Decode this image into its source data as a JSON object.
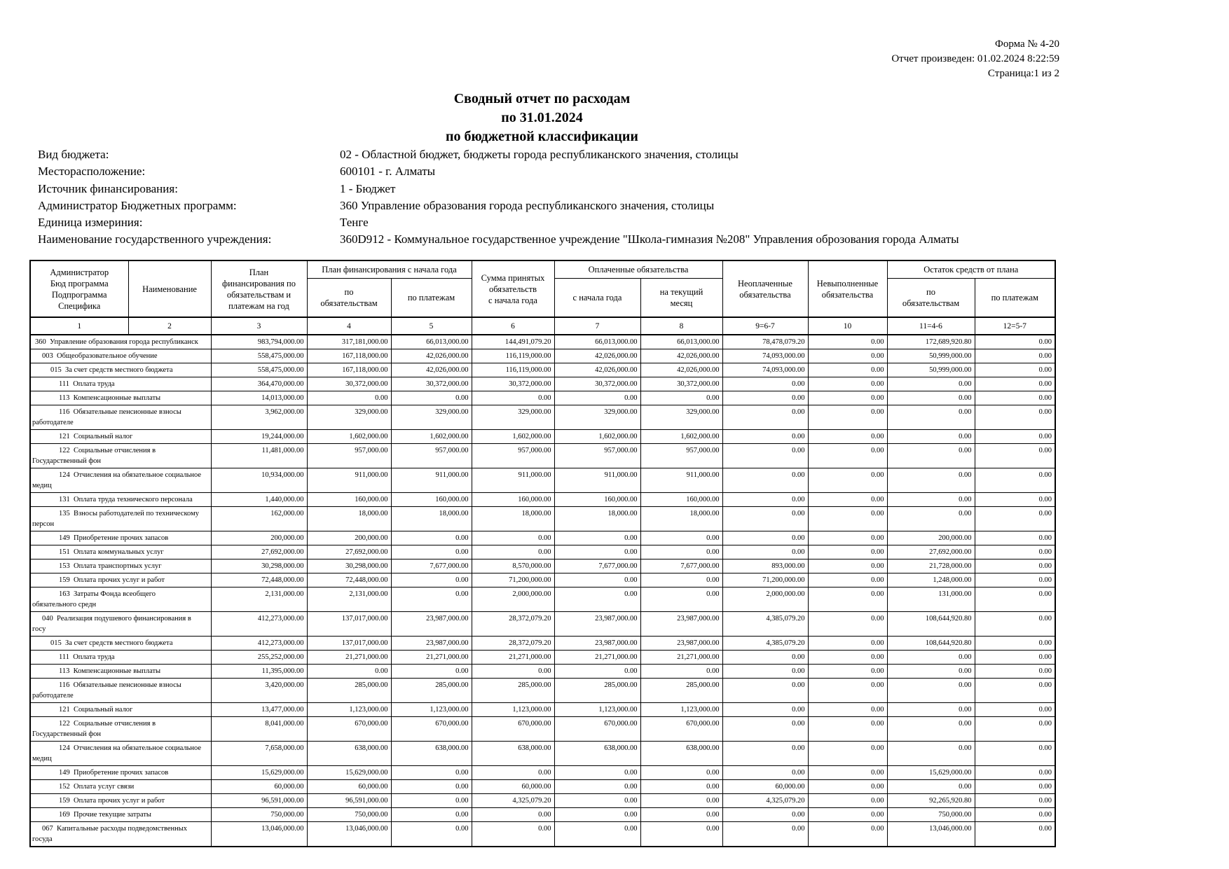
{
  "header": {
    "form": "Форма № 4-20",
    "generated": "Отчет произведен: 01.02.2024  8:22:59",
    "page": "Страница:1 из 2"
  },
  "title": {
    "line1": "Сводный отчет по расходам",
    "line2": "по 31.01.2024",
    "line3": "по бюджетной классификации"
  },
  "meta": [
    {
      "label": "Вид бюджета:",
      "value": "02 - Областной бюджет, бюджеты города республиканского значения, столицы"
    },
    {
      "label": "Месторасположение:",
      "value": "600101 - г. Алматы"
    },
    {
      "label": "Источник финансирования:",
      "value": "1 - Бюджет"
    },
    {
      "label": "Администратор Бюджетных программ:",
      "value": "360 Управление образования города республиканского значения, столицы"
    },
    {
      "label": "Единица измериния:",
      "value": "Тенге"
    },
    {
      "label": "Наименование государственного учреждения:",
      "value": "360D912 - Коммунальное государственное учреждение \"Школа-гимназия №208\" Управления оброзования города Алматы"
    }
  ],
  "table": {
    "col_admin": "Администратор\nБюд программа\nПодпрограмма\nСпецифика",
    "col_name": "Наименование",
    "col_plan_year": "План\nфинансирования по\nобязательствам и\nплатежам на год",
    "grp_plan_ytd": "План финансирования с начала года",
    "col_plan_oblig": "по\nобязательствам",
    "col_plan_pay": "по платежам",
    "col_sum_oblig": "Сумма принятых\nобязательств\nс начала года",
    "grp_paid": "Оплаченные обязательства",
    "col_paid_ytd": "с начала года",
    "col_paid_month": "на текущий\nмесяц",
    "col_unpaid": "Неоплаченные\nобязательства",
    "col_unfulfilled": "Невыполненные\nобязательства",
    "grp_remainder": "Остаток средств от плана",
    "col_rem_oblig": "по\nобязательствам",
    "col_rem_pay": "по платежам",
    "number_row": [
      "1",
      "2",
      "3",
      "4",
      "5",
      "6",
      "7",
      "8",
      "9=6-7",
      "10",
      "11=4-6",
      "12=5-7"
    ],
    "rows": [
      {
        "level": 0,
        "label": "360  Управление образования города республиканск",
        "values": [
          "983,794,000.00",
          "317,181,000.00",
          "66,013,000.00",
          "144,491,079.20",
          "66,013,000.00",
          "66,013,000.00",
          "78,478,079.20",
          "0.00",
          "172,689,920.80",
          "0.00"
        ]
      },
      {
        "level": 1,
        "label": "003  Общеобразовательное обучение",
        "values": [
          "558,475,000.00",
          "167,118,000.00",
          "42,026,000.00",
          "116,119,000.00",
          "42,026,000.00",
          "42,026,000.00",
          "74,093,000.00",
          "0.00",
          "50,999,000.00",
          "0.00"
        ]
      },
      {
        "level": 2,
        "label": "015  За счет средств местного бюджета",
        "values": [
          "558,475,000.00",
          "167,118,000.00",
          "42,026,000.00",
          "116,119,000.00",
          "42,026,000.00",
          "42,026,000.00",
          "74,093,000.00",
          "0.00",
          "50,999,000.00",
          "0.00"
        ]
      },
      {
        "level": 3,
        "label": "111  Оплата труда",
        "values": [
          "364,470,000.00",
          "30,372,000.00",
          "30,372,000.00",
          "30,372,000.00",
          "30,372,000.00",
          "30,372,000.00",
          "0.00",
          "0.00",
          "0.00",
          "0.00"
        ]
      },
      {
        "level": 3,
        "label": "113  Компенсационные выплаты",
        "values": [
          "14,013,000.00",
          "0.00",
          "0.00",
          "0.00",
          "0.00",
          "0.00",
          "0.00",
          "0.00",
          "0.00",
          "0.00"
        ]
      },
      {
        "level": 3,
        "label": "116  Обязательные пенсионные взносы\nработодателе",
        "values": [
          "3,962,000.00",
          "329,000.00",
          "329,000.00",
          "329,000.00",
          "329,000.00",
          "329,000.00",
          "0.00",
          "0.00",
          "0.00",
          "0.00"
        ]
      },
      {
        "level": 3,
        "label": "121  Социальный налог",
        "values": [
          "19,244,000.00",
          "1,602,000.00",
          "1,602,000.00",
          "1,602,000.00",
          "1,602,000.00",
          "1,602,000.00",
          "0.00",
          "0.00",
          "0.00",
          "0.00"
        ]
      },
      {
        "level": 3,
        "label": "122  Социальные отчисления в\nГосударственный фон",
        "values": [
          "11,481,000.00",
          "957,000.00",
          "957,000.00",
          "957,000.00",
          "957,000.00",
          "957,000.00",
          "0.00",
          "0.00",
          "0.00",
          "0.00"
        ]
      },
      {
        "level": 3,
        "label": "124  Отчисления на обязательное социальное\nмедиц",
        "values": [
          "10,934,000.00",
          "911,000.00",
          "911,000.00",
          "911,000.00",
          "911,000.00",
          "911,000.00",
          "0.00",
          "0.00",
          "0.00",
          "0.00"
        ]
      },
      {
        "level": 3,
        "label": "131  Оплата труда технического персонала",
        "values": [
          "1,440,000.00",
          "160,000.00",
          "160,000.00",
          "160,000.00",
          "160,000.00",
          "160,000.00",
          "0.00",
          "0.00",
          "0.00",
          "0.00"
        ]
      },
      {
        "level": 3,
        "label": "135  Взносы работодателей по техническому\nперсон",
        "values": [
          "162,000.00",
          "18,000.00",
          "18,000.00",
          "18,000.00",
          "18,000.00",
          "18,000.00",
          "0.00",
          "0.00",
          "0.00",
          "0.00"
        ]
      },
      {
        "level": 3,
        "label": "149  Приобретение прочих запасов",
        "values": [
          "200,000.00",
          "200,000.00",
          "0.00",
          "0.00",
          "0.00",
          "0.00",
          "0.00",
          "0.00",
          "200,000.00",
          "0.00"
        ]
      },
      {
        "level": 3,
        "label": "151  Оплата коммунальных услуг",
        "values": [
          "27,692,000.00",
          "27,692,000.00",
          "0.00",
          "0.00",
          "0.00",
          "0.00",
          "0.00",
          "0.00",
          "27,692,000.00",
          "0.00"
        ]
      },
      {
        "level": 3,
        "label": "153  Оплата транспортных услуг",
        "values": [
          "30,298,000.00",
          "30,298,000.00",
          "7,677,000.00",
          "8,570,000.00",
          "7,677,000.00",
          "7,677,000.00",
          "893,000.00",
          "0.00",
          "21,728,000.00",
          "0.00"
        ]
      },
      {
        "level": 3,
        "label": "159  Оплата прочих услуг и работ",
        "values": [
          "72,448,000.00",
          "72,448,000.00",
          "0.00",
          "71,200,000.00",
          "0.00",
          "0.00",
          "71,200,000.00",
          "0.00",
          "1,248,000.00",
          "0.00"
        ]
      },
      {
        "level": 3,
        "label": "163  Затраты Фонда всеобщего\nобязательного средн",
        "values": [
          "2,131,000.00",
          "2,131,000.00",
          "0.00",
          "2,000,000.00",
          "0.00",
          "0.00",
          "2,000,000.00",
          "0.00",
          "131,000.00",
          "0.00"
        ]
      },
      {
        "level": 1,
        "label": "040  Реализация подушевого финансирования в\nгосу",
        "values": [
          "412,273,000.00",
          "137,017,000.00",
          "23,987,000.00",
          "28,372,079.20",
          "23,987,000.00",
          "23,987,000.00",
          "4,385,079.20",
          "0.00",
          "108,644,920.80",
          "0.00"
        ]
      },
      {
        "level": 2,
        "label": "015  За счет средств местного бюджета",
        "values": [
          "412,273,000.00",
          "137,017,000.00",
          "23,987,000.00",
          "28,372,079.20",
          "23,987,000.00",
          "23,987,000.00",
          "4,385,079.20",
          "0.00",
          "108,644,920.80",
          "0.00"
        ]
      },
      {
        "level": 3,
        "label": "111  Оплата труда",
        "values": [
          "255,252,000.00",
          "21,271,000.00",
          "21,271,000.00",
          "21,271,000.00",
          "21,271,000.00",
          "21,271,000.00",
          "0.00",
          "0.00",
          "0.00",
          "0.00"
        ]
      },
      {
        "level": 3,
        "label": "113  Компенсационные выплаты",
        "values": [
          "11,395,000.00",
          "0.00",
          "0.00",
          "0.00",
          "0.00",
          "0.00",
          "0.00",
          "0.00",
          "0.00",
          "0.00"
        ]
      },
      {
        "level": 3,
        "label": "116  Обязательные пенсионные взносы\nработодателе",
        "values": [
          "3,420,000.00",
          "285,000.00",
          "285,000.00",
          "285,000.00",
          "285,000.00",
          "285,000.00",
          "0.00",
          "0.00",
          "0.00",
          "0.00"
        ]
      },
      {
        "level": 3,
        "label": "121  Социальный налог",
        "values": [
          "13,477,000.00",
          "1,123,000.00",
          "1,123,000.00",
          "1,123,000.00",
          "1,123,000.00",
          "1,123,000.00",
          "0.00",
          "0.00",
          "0.00",
          "0.00"
        ]
      },
      {
        "level": 3,
        "label": "122  Социальные отчисления в\nГосударственный фон",
        "values": [
          "8,041,000.00",
          "670,000.00",
          "670,000.00",
          "670,000.00",
          "670,000.00",
          "670,000.00",
          "0.00",
          "0.00",
          "0.00",
          "0.00"
        ]
      },
      {
        "level": 3,
        "label": "124  Отчисления на обязательное социальное\nмедиц",
        "values": [
          "7,658,000.00",
          "638,000.00",
          "638,000.00",
          "638,000.00",
          "638,000.00",
          "638,000.00",
          "0.00",
          "0.00",
          "0.00",
          "0.00"
        ]
      },
      {
        "level": 3,
        "label": "149  Приобретение прочих запасов",
        "values": [
          "15,629,000.00",
          "15,629,000.00",
          "0.00",
          "0.00",
          "0.00",
          "0.00",
          "0.00",
          "0.00",
          "15,629,000.00",
          "0.00"
        ]
      },
      {
        "level": 3,
        "label": "152  Оплата услуг связи",
        "values": [
          "60,000.00",
          "60,000.00",
          "0.00",
          "60,000.00",
          "0.00",
          "0.00",
          "60,000.00",
          "0.00",
          "0.00",
          "0.00"
        ]
      },
      {
        "level": 3,
        "label": "159  Оплата прочих услуг и работ",
        "values": [
          "96,591,000.00",
          "96,591,000.00",
          "0.00",
          "4,325,079.20",
          "0.00",
          "0.00",
          "4,325,079.20",
          "0.00",
          "92,265,920.80",
          "0.00"
        ]
      },
      {
        "level": 3,
        "label": "169  Прочие текущие затраты",
        "values": [
          "750,000.00",
          "750,000.00",
          "0.00",
          "0.00",
          "0.00",
          "0.00",
          "0.00",
          "0.00",
          "750,000.00",
          "0.00"
        ]
      },
      {
        "level": 1,
        "label": "067  Капитальные расходы подведомственных\nгосуда",
        "values": [
          "13,046,000.00",
          "13,046,000.00",
          "0.00",
          "0.00",
          "0.00",
          "0.00",
          "0.00",
          "0.00",
          "13,046,000.00",
          "0.00"
        ]
      }
    ]
  }
}
